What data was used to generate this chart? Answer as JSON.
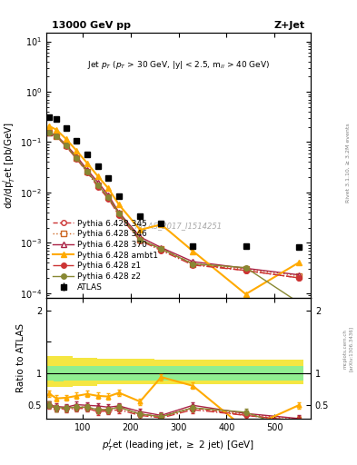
{
  "title_top": "13000 GeV pp",
  "title_right": "Z+Jet",
  "panel_title": "Jet p_{T} (p_{T} > 30 GeV, |y| < 2.5, m_{ll} > 40 GeV)",
  "ylabel_main": "dσ/dp$_T^{j}$et [pb/GeV]",
  "ylabel_ratio": "Ratio to ATLAS",
  "xlabel": "p$_T^{j}$et (leading jet, ≥ 2 jet) [GeV]",
  "right_label": "Rivet 3.1.10, ≥ 3.2M events",
  "watermark": "ATLAS_2017_I1514251",
  "arxiv": "[arXiv:1306.3436]",
  "mcplots": "mcplots.cern.ch",
  "atlas_x": [
    30,
    46,
    66,
    88,
    110,
    132,
    154,
    176,
    220,
    264,
    330,
    440,
    550
  ],
  "atlas_y": [
    0.31,
    0.29,
    0.19,
    0.105,
    0.057,
    0.033,
    0.019,
    0.0083,
    0.0033,
    0.00245,
    0.00085,
    0.00085,
    0.00082
  ],
  "atlas_yerr_lo": [
    0.03,
    0.03,
    0.02,
    0.011,
    0.006,
    0.003,
    0.002,
    0.001,
    0.0004,
    0.0003,
    0.0001,
    0.0001,
    0.0001
  ],
  "atlas_yerr_hi": [
    0.03,
    0.03,
    0.02,
    0.011,
    0.006,
    0.003,
    0.002,
    0.001,
    0.0004,
    0.0003,
    0.0001,
    0.0001,
    0.0001
  ],
  "py345_x": [
    30,
    46,
    66,
    88,
    110,
    132,
    154,
    176,
    220,
    264,
    330,
    440,
    550
  ],
  "py345_y": [
    0.155,
    0.13,
    0.085,
    0.048,
    0.026,
    0.014,
    0.008,
    0.0038,
    0.00115,
    0.00075,
    0.00038,
    0.00028,
    0.0002
  ],
  "py345_color": "#cc3333",
  "py345_ls": "--",
  "py345_marker": "o",
  "py345_mfc": "white",
  "py345_label": "Pythia 6.428 345",
  "py346_x": [
    30,
    46,
    66,
    88,
    110,
    132,
    154,
    176,
    220,
    264,
    330,
    440,
    550
  ],
  "py346_y": [
    0.155,
    0.13,
    0.085,
    0.048,
    0.026,
    0.014,
    0.008,
    0.0038,
    0.00115,
    0.00075,
    0.00038,
    0.0003,
    0.00022
  ],
  "py346_color": "#cc6622",
  "py346_ls": ":",
  "py346_marker": "s",
  "py346_mfc": "white",
  "py346_label": "Pythia 6.428 346",
  "py370_x": [
    30,
    46,
    66,
    88,
    110,
    132,
    154,
    176,
    220,
    264,
    330,
    440,
    550
  ],
  "py370_y": [
    0.155,
    0.135,
    0.088,
    0.052,
    0.028,
    0.016,
    0.0088,
    0.004,
    0.0013,
    0.0008,
    0.00042,
    0.00031,
    0.00023
  ],
  "py370_color": "#aa2244",
  "py370_ls": "-",
  "py370_marker": "^",
  "py370_mfc": "white",
  "py370_label": "Pythia 6.428 370",
  "pyambt1_x": [
    30,
    46,
    66,
    88,
    110,
    132,
    154,
    176,
    220,
    264,
    330,
    440,
    550
  ],
  "pyambt1_y": [
    0.21,
    0.175,
    0.115,
    0.067,
    0.038,
    0.021,
    0.012,
    0.0057,
    0.0018,
    0.0023,
    0.00068,
    9.5e-05,
    0.0004
  ],
  "pyambt1_color": "#ffaa00",
  "pyambt1_ls": "-",
  "pyambt1_marker": "^",
  "pyambt1_mfc": "#ffaa00",
  "pyambt1_label": "Pythia 6.428 ambt1",
  "pyz1_x": [
    30,
    46,
    66,
    88,
    110,
    132,
    154,
    176,
    220,
    264,
    330,
    440,
    550
  ],
  "pyz1_y": [
    0.152,
    0.128,
    0.082,
    0.046,
    0.025,
    0.013,
    0.0075,
    0.0035,
    0.0011,
    0.0007,
    0.00036,
    0.00028,
    0.0002
  ],
  "pyz1_color": "#cc3333",
  "pyz1_ls": "-.",
  "pyz1_marker": "o",
  "pyz1_mfc": "#cc3333",
  "pyz1_label": "Pythia 6.428 z1",
  "pyz2_x": [
    30,
    46,
    66,
    88,
    110,
    132,
    154,
    176,
    220,
    264,
    330,
    440,
    550
  ],
  "pyz2_y": [
    0.155,
    0.13,
    0.085,
    0.048,
    0.026,
    0.014,
    0.008,
    0.0038,
    0.00115,
    0.00075,
    0.00038,
    0.00032,
    6.5e-05
  ],
  "pyz2_color": "#888833",
  "pyz2_ls": "-",
  "pyz2_marker": "o",
  "pyz2_mfc": "#888833",
  "pyz2_label": "Pythia 6.428 z2",
  "ratio_xbins": [
    0,
    40,
    60,
    80,
    100,
    130,
    160,
    200,
    250,
    310,
    400,
    520,
    560
  ],
  "green_band_lo": [
    0.88,
    0.87,
    0.88,
    0.88,
    0.88,
    0.88,
    0.88,
    0.88,
    0.88,
    0.88,
    0.88,
    0.88
  ],
  "green_band_hi": [
    1.12,
    1.12,
    1.12,
    1.12,
    1.12,
    1.12,
    1.12,
    1.12,
    1.12,
    1.12,
    1.12,
    1.12
  ],
  "yellow_band_lo": [
    0.78,
    0.78,
    0.79,
    0.8,
    0.8,
    0.82,
    0.82,
    0.82,
    0.82,
    0.82,
    0.82,
    0.82
  ],
  "yellow_band_hi": [
    1.28,
    1.28,
    1.27,
    1.25,
    1.25,
    1.23,
    1.23,
    1.23,
    1.22,
    1.22,
    1.22,
    1.22
  ],
  "ratio_atlas_x": [
    30,
    46,
    66,
    88,
    110,
    132,
    154,
    176,
    220,
    264,
    330,
    440,
    550
  ],
  "ratio_py345": [
    0.5,
    0.45,
    0.45,
    0.46,
    0.46,
    0.42,
    0.42,
    0.46,
    0.35,
    0.31,
    0.45,
    0.33,
    0.24
  ],
  "ratio_py346": [
    0.5,
    0.45,
    0.45,
    0.46,
    0.46,
    0.42,
    0.42,
    0.46,
    0.35,
    0.31,
    0.45,
    0.35,
    0.27
  ],
  "ratio_py370": [
    0.5,
    0.47,
    0.46,
    0.5,
    0.49,
    0.48,
    0.46,
    0.48,
    0.39,
    0.33,
    0.49,
    0.36,
    0.28
  ],
  "ratio_pyambt1": [
    0.68,
    0.6,
    0.61,
    0.64,
    0.67,
    0.64,
    0.63,
    0.69,
    0.55,
    0.94,
    0.8,
    0.11,
    0.49
  ],
  "ratio_pyz1": [
    0.49,
    0.44,
    0.43,
    0.44,
    0.44,
    0.39,
    0.4,
    0.42,
    0.33,
    0.29,
    0.42,
    0.33,
    0.24
  ],
  "ratio_pyz2": [
    0.5,
    0.45,
    0.45,
    0.46,
    0.46,
    0.42,
    0.42,
    0.46,
    0.35,
    0.31,
    0.45,
    0.38,
    0.079
  ],
  "xlim": [
    25,
    575
  ],
  "ylim_main": [
    8e-05,
    15
  ],
  "ylim_ratio": [
    0.28,
    2.2
  ]
}
